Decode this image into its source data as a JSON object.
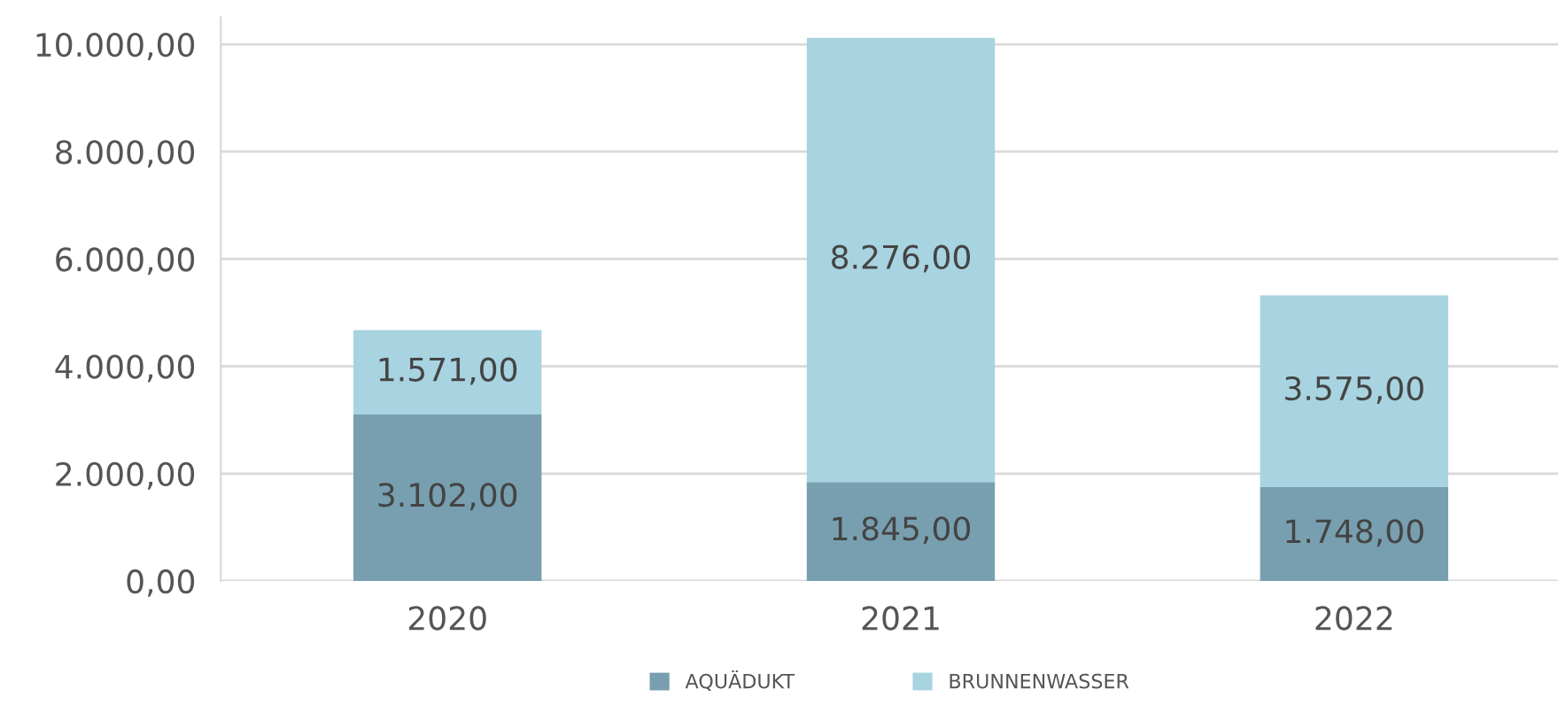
{
  "chart_data": {
    "type": "bar",
    "stacked": true,
    "categories": [
      "2020",
      "2021",
      "2022"
    ],
    "series": [
      {
        "name": "AQUÄDUKT",
        "color": "#789fb0",
        "values": [
          3102,
          1845,
          1748
        ],
        "value_labels": [
          "3.102,00",
          "1.845,00",
          "1.748,00"
        ]
      },
      {
        "name": "BRUNNENWASSER",
        "color": "#a8d3e0",
        "values": [
          1571,
          8276,
          3575
        ],
        "value_labels": [
          "1.571,00",
          "8.276,00",
          "3.575,00"
        ]
      }
    ],
    "ylim": [
      0,
      10500
    ],
    "yticks": [
      {
        "value": 0,
        "label": "0,00"
      },
      {
        "value": 2000,
        "label": "2.000,00"
      },
      {
        "value": 4000,
        "label": "4.000,00"
      },
      {
        "value": 6000,
        "label": "6.000,00"
      },
      {
        "value": 8000,
        "label": "8.000,00"
      },
      {
        "value": 10000,
        "label": "10.000,00"
      }
    ],
    "grid": "y",
    "legend": "bottom"
  }
}
